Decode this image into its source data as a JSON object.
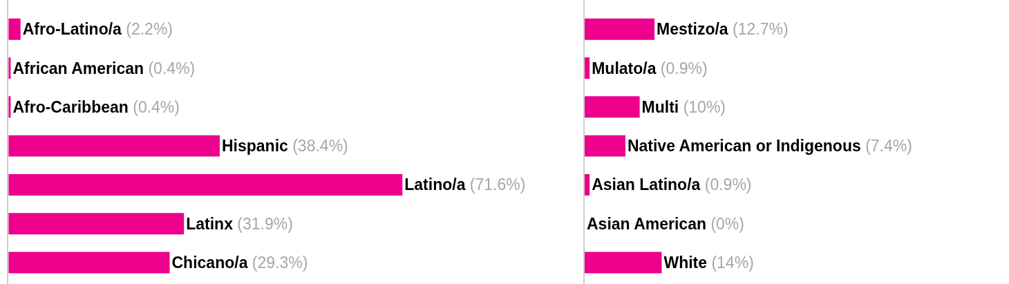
{
  "chart_data": [
    {
      "type": "bar",
      "orientation": "horizontal",
      "color": "#ec008c",
      "categories": [
        null,
        null,
        null,
        null,
        null,
        null,
        null
      ],
      "values": [
        2.2,
        0.4,
        0.4,
        38.4,
        71.6,
        31.9,
        29.3
      ],
      "value_labels": [
        "Afro-Latino/a (2.2%)",
        "African American (0.4%)",
        "Afro-Caribbean (0.4%)",
        "Hispanic (38.4%)",
        "Latino/a (71.6%)",
        "Latinx (31.9%)",
        "Chicano/a (29.3%)"
      ]
    },
    {
      "type": "bar",
      "orientation": "horizontal",
      "color": "#ec008c",
      "categories": [
        null,
        null,
        null,
        null,
        null,
        null,
        null
      ],
      "values": [
        12.7,
        0.9,
        10,
        7.4,
        0.9,
        0,
        14
      ],
      "value_labels": [
        "Mestizo/a (12.7%)",
        "Mulato/a (0.9%)",
        "Multi (10%)",
        "Native American or Indigenous (7.4%)",
        "Asian Latino/a (0.9%)",
        "Asian American (0%)",
        "White (14%)"
      ]
    }
  ]
}
